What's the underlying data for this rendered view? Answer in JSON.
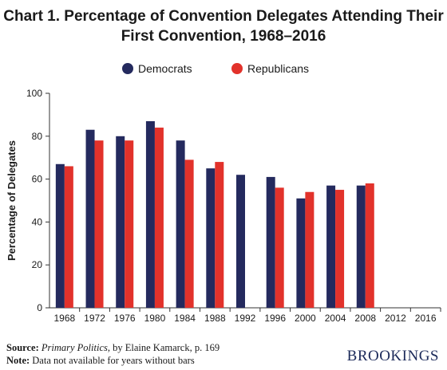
{
  "title": {
    "line1": "Chart 1. Percentage of Convention Delegates Attending Their",
    "line2": "First Convention, 1968–2016"
  },
  "footer": {
    "source_label": "Source:",
    "source_title": "Primary Politics",
    "source_rest": ", by Elaine Kamarck, p. 169",
    "note_label": "Note:",
    "note_text": "Data not available for years without bars"
  },
  "brand": "BROOKINGS",
  "colors": {
    "democrats": "#242a5e",
    "republicans": "#e2322b",
    "axis": "#333333"
  },
  "chart_data": {
    "type": "bar",
    "title": "Chart 1. Percentage of Convention Delegates Attending Their First Convention, 1968–2016",
    "xlabel": "",
    "ylabel": "Percentage of Delegates",
    "ylim": [
      0,
      100
    ],
    "yticks": [
      0,
      20,
      40,
      60,
      80,
      100
    ],
    "categories": [
      "1968",
      "1972",
      "1976",
      "1980",
      "1984",
      "1988",
      "1992",
      "1996",
      "2000",
      "2004",
      "2008",
      "2012",
      "2016"
    ],
    "series": [
      {
        "name": "Democrats",
        "color": "#242a5e",
        "values": [
          67,
          83,
          80,
          87,
          78,
          65,
          62,
          61,
          51,
          57,
          57,
          null,
          null
        ]
      },
      {
        "name": "Republicans",
        "color": "#e2322b",
        "values": [
          66,
          78,
          78,
          84,
          69,
          68,
          null,
          56,
          54,
          55,
          58,
          null,
          null
        ]
      }
    ],
    "legend": "top-center",
    "grid": false
  }
}
